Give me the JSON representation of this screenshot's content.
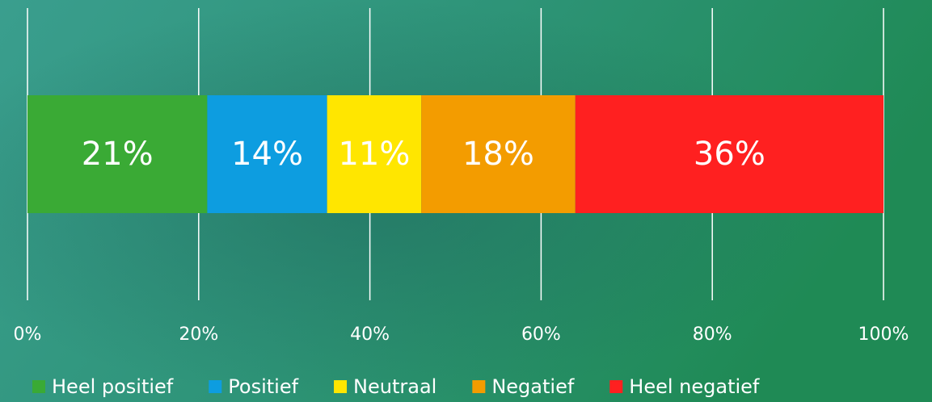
{
  "chart_data": {
    "type": "stacked-bar",
    "orientation": "horizontal",
    "categories": [
      null
    ],
    "series": [
      {
        "name": "Heel positief",
        "color": "#3aaa35",
        "values": [
          21
        ],
        "value_labels": [
          "21%"
        ]
      },
      {
        "name": "Positief",
        "color": "#0d9de0",
        "values": [
          14
        ],
        "value_labels": [
          "14%"
        ]
      },
      {
        "name": "Neutraal",
        "color": "#ffe600",
        "values": [
          11
        ],
        "value_labels": [
          "11%"
        ]
      },
      {
        "name": "Negatief",
        "color": "#f39c00",
        "values": [
          18
        ],
        "value_labels": [
          "18%"
        ]
      },
      {
        "name": "Heel negatief",
        "color": "#ff2020",
        "values": [
          36
        ],
        "value_labels": [
          "36%"
        ]
      }
    ],
    "xlim": [
      0,
      100
    ],
    "xticks": [
      {
        "value": 0,
        "label": "0%"
      },
      {
        "value": 20,
        "label": "20%"
      },
      {
        "value": 40,
        "label": "40%"
      },
      {
        "value": 60,
        "label": "60%"
      },
      {
        "value": 80,
        "label": "80%"
      },
      {
        "value": 100,
        "label": "100%"
      }
    ],
    "grid": true
  }
}
